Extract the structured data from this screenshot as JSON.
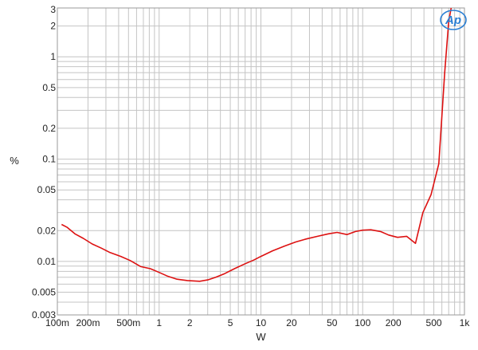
{
  "chart_data": {
    "type": "line",
    "xlabel": "W",
    "ylabel": "%",
    "x_scale": "log",
    "y_scale": "log",
    "xlim": [
      0.1,
      1000
    ],
    "ylim": [
      0.003,
      3
    ],
    "grid": true,
    "x_ticks": [
      {
        "value": 0.1,
        "label": "100m"
      },
      {
        "value": 0.2,
        "label": "200m"
      },
      {
        "value": 0.5,
        "label": "500m"
      },
      {
        "value": 1,
        "label": "1"
      },
      {
        "value": 2,
        "label": "2"
      },
      {
        "value": 5,
        "label": "5"
      },
      {
        "value": 10,
        "label": "10"
      },
      {
        "value": 20,
        "label": "20"
      },
      {
        "value": 50,
        "label": "50"
      },
      {
        "value": 100,
        "label": "100"
      },
      {
        "value": 200,
        "label": "200"
      },
      {
        "value": 500,
        "label": "500"
      },
      {
        "value": 1000,
        "label": "1k"
      }
    ],
    "y_ticks": [
      {
        "value": 0.003,
        "label": "0.003"
      },
      {
        "value": 0.005,
        "label": "0.005"
      },
      {
        "value": 0.01,
        "label": "0.01"
      },
      {
        "value": 0.02,
        "label": "0.02"
      },
      {
        "value": 0.05,
        "label": "0.05"
      },
      {
        "value": 0.1,
        "label": "0.1"
      },
      {
        "value": 0.2,
        "label": "0.2"
      },
      {
        "value": 0.5,
        "label": "0.5"
      },
      {
        "value": 1,
        "label": "1"
      },
      {
        "value": 2,
        "label": "2"
      },
      {
        "value": 3,
        "label": "3"
      }
    ],
    "series": [
      {
        "color": "#dd1111",
        "x": [
          0.11,
          0.125,
          0.15,
          0.18,
          0.22,
          0.27,
          0.33,
          0.42,
          0.52,
          0.66,
          0.82,
          1.0,
          1.2,
          1.5,
          1.9,
          2.5,
          3.0,
          3.6,
          4.4,
          5.5,
          7,
          8.5,
          10,
          13,
          17,
          22,
          28,
          36,
          46,
          56,
          70,
          85,
          100,
          120,
          150,
          180,
          220,
          270,
          330,
          390,
          470,
          560,
          640,
          700,
          740
        ],
        "y": [
          0.023,
          0.0215,
          0.0185,
          0.0168,
          0.0148,
          0.0135,
          0.0122,
          0.0112,
          0.0102,
          0.0089,
          0.0085,
          0.0078,
          0.0072,
          0.0067,
          0.0065,
          0.0064,
          0.0066,
          0.007,
          0.0076,
          0.0085,
          0.0095,
          0.0103,
          0.0112,
          0.0127,
          0.0141,
          0.0155,
          0.0166,
          0.0176,
          0.0186,
          0.0192,
          0.0183,
          0.0196,
          0.0202,
          0.0204,
          0.0196,
          0.0181,
          0.0172,
          0.0176,
          0.015,
          0.03,
          0.045,
          0.09,
          0.7,
          2.2,
          3.0
        ]
      }
    ]
  },
  "logo": {
    "text": "Ap",
    "color": "#2a7fd4"
  }
}
